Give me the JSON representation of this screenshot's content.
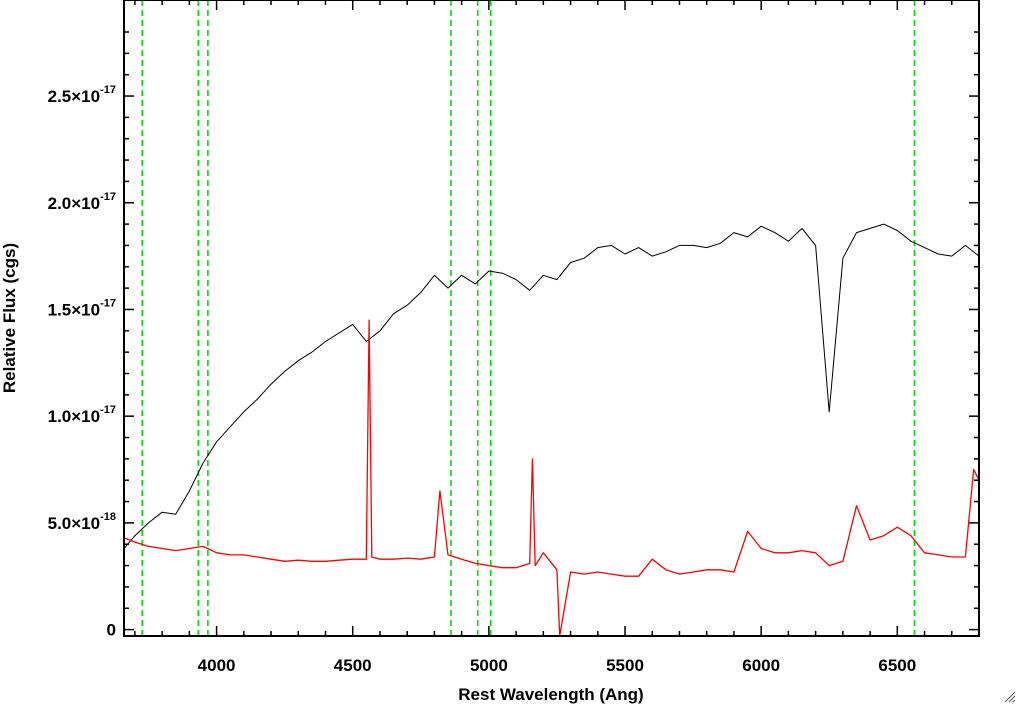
{
  "chart_data": {
    "type": "line",
    "title": "",
    "xlabel": "Rest Wavelength (Ang)",
    "ylabel": "Relative Flux (cgs)",
    "xlim": [
      3660,
      6800
    ],
    "ylim": [
      -3e-19,
      2.95e-17
    ],
    "grid": false,
    "x_ticks": [
      {
        "value": 4000,
        "label": "4000"
      },
      {
        "value": 4500,
        "label": "4500"
      },
      {
        "value": 5000,
        "label": "5000"
      },
      {
        "value": 5500,
        "label": "5500"
      },
      {
        "value": 6000,
        "label": "6000"
      },
      {
        "value": 6500,
        "label": "6500"
      }
    ],
    "y_ticks": [
      {
        "value": 0,
        "mantissa": "0",
        "exponent": ""
      },
      {
        "value": 5e-18,
        "mantissa": "5.0×10",
        "exponent": "-18"
      },
      {
        "value": 1e-17,
        "mantissa": "1.0×10",
        "exponent": "-17"
      },
      {
        "value": 1.5e-17,
        "mantissa": "1.5×10",
        "exponent": "-17"
      },
      {
        "value": 2e-17,
        "mantissa": "2.0×10",
        "exponent": "-17"
      },
      {
        "value": 2.5e-17,
        "mantissa": "2.5×10",
        "exponent": "-17"
      }
    ],
    "reference_lines_x": [
      3727,
      3933,
      3968,
      4861,
      4959,
      5007,
      6563
    ],
    "series": [
      {
        "color": "#000000",
        "x": [
          3660,
          3700,
          3750,
          3800,
          3850,
          3900,
          3950,
          4000,
          4050,
          4100,
          4150,
          4200,
          4250,
          4300,
          4350,
          4400,
          4450,
          4500,
          4550,
          4600,
          4650,
          4700,
          4750,
          4800,
          4850,
          4900,
          4950,
          5000,
          5050,
          5100,
          5150,
          5200,
          5250,
          5300,
          5350,
          5400,
          5450,
          5500,
          5550,
          5600,
          5650,
          5700,
          5750,
          5800,
          5850,
          5900,
          5950,
          6000,
          6050,
          6100,
          6150,
          6200,
          6250,
          6300,
          6350,
          6400,
          6450,
          6500,
          6550,
          6600,
          6650,
          6700,
          6750,
          6800
        ],
        "values": [
          3.8e-18,
          4.4e-18,
          5e-18,
          5.5e-18,
          5.4e-18,
          6.5e-18,
          7.8e-18,
          8.8e-18,
          9.5e-18,
          1.02e-17,
          1.08e-17,
          1.15e-17,
          1.21e-17,
          1.26e-17,
          1.3e-17,
          1.35e-17,
          1.39e-17,
          1.43e-17,
          1.35e-17,
          1.4e-17,
          1.48e-17,
          1.52e-17,
          1.58e-17,
          1.66e-17,
          1.6e-17,
          1.66e-17,
          1.62e-17,
          1.68e-17,
          1.67e-17,
          1.64e-17,
          1.59e-17,
          1.66e-17,
          1.64e-17,
          1.72e-17,
          1.74e-17,
          1.79e-17,
          1.8e-17,
          1.76e-17,
          1.79e-17,
          1.75e-17,
          1.77e-17,
          1.8e-17,
          1.8e-17,
          1.79e-17,
          1.81e-17,
          1.86e-17,
          1.84e-17,
          1.89e-17,
          1.86e-17,
          1.82e-17,
          1.88e-17,
          1.8e-17,
          1.02e-17,
          1.74e-17,
          1.86e-17,
          1.88e-17,
          1.9e-17,
          1.87e-17,
          1.82e-17,
          1.79e-17,
          1.76e-17,
          1.75e-17,
          1.8e-17,
          1.75e-17
        ]
      },
      {
        "color": "#ff0000",
        "x": [
          3660,
          3700,
          3750,
          3800,
          3850,
          3900,
          3950,
          4000,
          4050,
          4100,
          4150,
          4200,
          4250,
          4300,
          4350,
          4400,
          4450,
          4500,
          4550,
          4560,
          4570,
          4600,
          4650,
          4700,
          4750,
          4800,
          4820,
          4850,
          4900,
          4950,
          5000,
          5050,
          5100,
          5150,
          5160,
          5170,
          5200,
          5250,
          5260,
          5300,
          5350,
          5400,
          5450,
          5500,
          5550,
          5600,
          5650,
          5700,
          5750,
          5800,
          5850,
          5900,
          5950,
          6000,
          6050,
          6100,
          6150,
          6200,
          6250,
          6300,
          6350,
          6400,
          6450,
          6500,
          6550,
          6600,
          6650,
          6700,
          6750,
          6780,
          6800
        ],
        "values": [
          4.3e-18,
          4.1e-18,
          3.9e-18,
          3.8e-18,
          3.7e-18,
          3.8e-18,
          3.9e-18,
          3.6e-18,
          3.5e-18,
          3.5e-18,
          3.4e-18,
          3.3e-18,
          3.2e-18,
          3.25e-18,
          3.2e-18,
          3.2e-18,
          3.25e-18,
          3.3e-18,
          3.3e-18,
          1.45e-17,
          3.4e-18,
          3.3e-18,
          3.3e-18,
          3.35e-18,
          3.3e-18,
          3.4e-18,
          6.5e-18,
          3.5e-18,
          3.3e-18,
          3.1e-18,
          3e-18,
          2.9e-18,
          2.9e-18,
          3.1e-18,
          8e-18,
          3e-18,
          3.6e-18,
          2.8e-18,
          -3e-19,
          2.7e-18,
          2.6e-18,
          2.7e-18,
          2.6e-18,
          2.5e-18,
          2.5e-18,
          3.3e-18,
          2.8e-18,
          2.6e-18,
          2.7e-18,
          2.8e-18,
          2.8e-18,
          2.7e-18,
          4.6e-18,
          3.8e-18,
          3.6e-18,
          3.6e-18,
          3.7e-18,
          3.6e-18,
          3e-18,
          3.2e-18,
          5.8e-18,
          4.2e-18,
          4.4e-18,
          4.8e-18,
          4.4e-18,
          3.6e-18,
          3.5e-18,
          3.4e-18,
          3.4e-18,
          7.5e-18,
          7e-18
        ]
      }
    ]
  }
}
